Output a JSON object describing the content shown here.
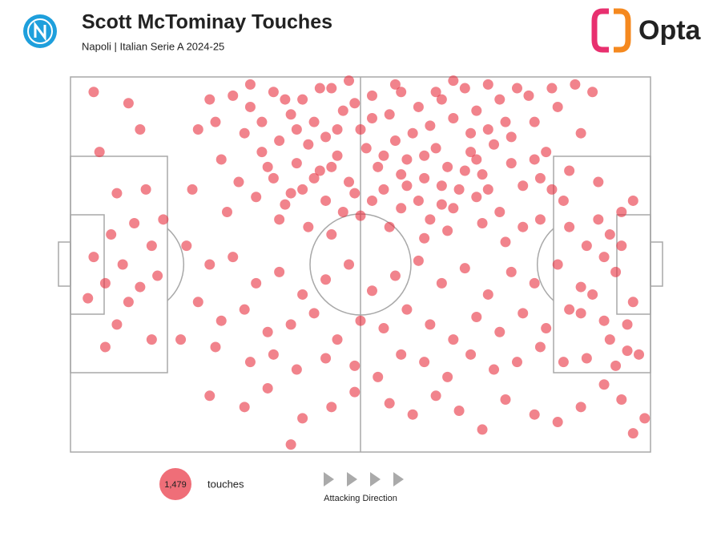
{
  "chart_data": {
    "type": "scatter",
    "title": "Scott McTominay Touches",
    "subtitle": "Napoli | Italian Serie A 2024-25",
    "brand": "Opta",
    "total": {
      "value": 1479,
      "label": "1,479"
    },
    "total_text": "touches",
    "direction_text": "Attacking Direction",
    "xlim": [
      0,
      100
    ],
    "ylim": [
      0,
      100
    ],
    "series": [
      {
        "color": "#e8303f",
        "x": [
          28,
          31,
          35,
          38,
          40,
          42,
          45,
          47,
          50,
          52,
          55,
          57,
          60,
          62,
          64,
          66,
          68,
          70,
          72,
          74,
          30,
          33,
          36,
          39,
          41,
          43,
          46,
          48,
          51,
          53,
          56,
          58,
          61,
          63,
          65,
          67,
          69,
          71,
          73,
          76,
          29,
          32,
          35,
          37,
          40,
          44,
          47,
          49,
          54,
          57,
          60,
          62,
          66,
          70,
          74,
          78,
          80,
          82,
          84,
          86,
          88,
          90,
          85,
          91,
          78,
          24,
          22,
          26,
          21,
          27,
          33,
          37,
          44,
          49,
          54,
          59,
          63,
          69,
          75,
          77,
          34,
          42,
          46,
          52,
          58,
          64,
          68,
          72,
          80,
          83,
          36,
          41,
          45,
          50,
          55,
          61,
          65,
          71,
          75,
          81,
          4,
          10,
          12,
          5,
          8,
          13,
          11,
          7,
          14,
          9,
          4,
          6,
          12,
          15,
          10,
          3,
          8,
          14,
          6,
          16,
          20,
          24,
          28,
          32,
          36,
          40,
          44,
          48,
          52,
          56,
          60,
          64,
          68,
          72,
          76,
          80,
          84,
          88,
          92,
          95,
          22,
          26,
          30,
          34,
          38,
          42,
          46,
          50,
          54,
          58,
          62,
          66,
          70,
          74,
          78,
          82,
          86,
          90,
          94,
          97,
          19,
          25,
          31,
          35,
          39,
          44,
          49,
          53,
          57,
          61,
          65,
          69,
          73,
          77,
          81,
          85,
          89,
          93,
          96,
          98,
          24,
          30,
          34,
          40,
          45,
          49,
          55,
          59,
          63,
          67,
          71,
          75,
          80,
          84,
          88,
          92,
          95,
          97,
          38,
          99,
          31,
          43,
          48,
          56,
          66,
          72,
          79,
          83,
          87,
          25,
          39,
          52,
          61,
          70,
          76,
          81,
          45,
          57,
          64,
          38,
          86,
          89,
          91,
          93,
          95,
          97,
          88,
          92,
          96,
          94
        ],
        "values": [
          5,
          8,
          4,
          10,
          6,
          12,
          3,
          9,
          14,
          5,
          10,
          4,
          8,
          13,
          6,
          11,
          3,
          9,
          14,
          6,
          15,
          20,
          17,
          23,
          18,
          25,
          21,
          28,
          19,
          24,
          17,
          22,
          27,
          19,
          24,
          30,
          20,
          26,
          18,
          23,
          28,
          32,
          27,
          34,
          30,
          33,
          36,
          31,
          30,
          35,
          33,
          38,
          35,
          32,
          36,
          29,
          12,
          20,
          8,
          25,
          15,
          4,
          33,
          28,
          40,
          6,
          14,
          22,
          30,
          36,
          12,
          6,
          16,
          7,
          21,
          15,
          4,
          15,
          12,
          3,
          24,
          27,
          14,
          33,
          29,
          29,
          25,
          30,
          22,
          30,
          38,
          40,
          42,
          37,
          40,
          43,
          41,
          39,
          44,
          38,
          4,
          7,
          14,
          20,
          31,
          30,
          39,
          42,
          45,
          50,
          48,
          55,
          56,
          53,
          60,
          59,
          66,
          70,
          72,
          38,
          45,
          50,
          48,
          55,
          52,
          58,
          54,
          50,
          57,
          53,
          49,
          55,
          51,
          58,
          52,
          55,
          50,
          56,
          48,
          45,
          60,
          65,
          62,
          68,
          66,
          63,
          70,
          65,
          67,
          62,
          66,
          70,
          64,
          68,
          63,
          67,
          62,
          58,
          52,
          60,
          70,
          72,
          76,
          74,
          78,
          75,
          77,
          80,
          74,
          76,
          80,
          74,
          78,
          76,
          72,
          76,
          75,
          70,
          73,
          74,
          85,
          88,
          83,
          91,
          88,
          84,
          87,
          90,
          85,
          89,
          94,
          86,
          90,
          92,
          88,
          82,
          86,
          95,
          98,
          91,
          2,
          3,
          1,
          2,
          1,
          2,
          5,
          3,
          2,
          12,
          14,
          11,
          21,
          22,
          16,
          27,
          24,
          26,
          34,
          31,
          40,
          45,
          38,
          42,
          36,
          33,
          63,
          65,
          66,
          77
        ]
      }
    ]
  }
}
